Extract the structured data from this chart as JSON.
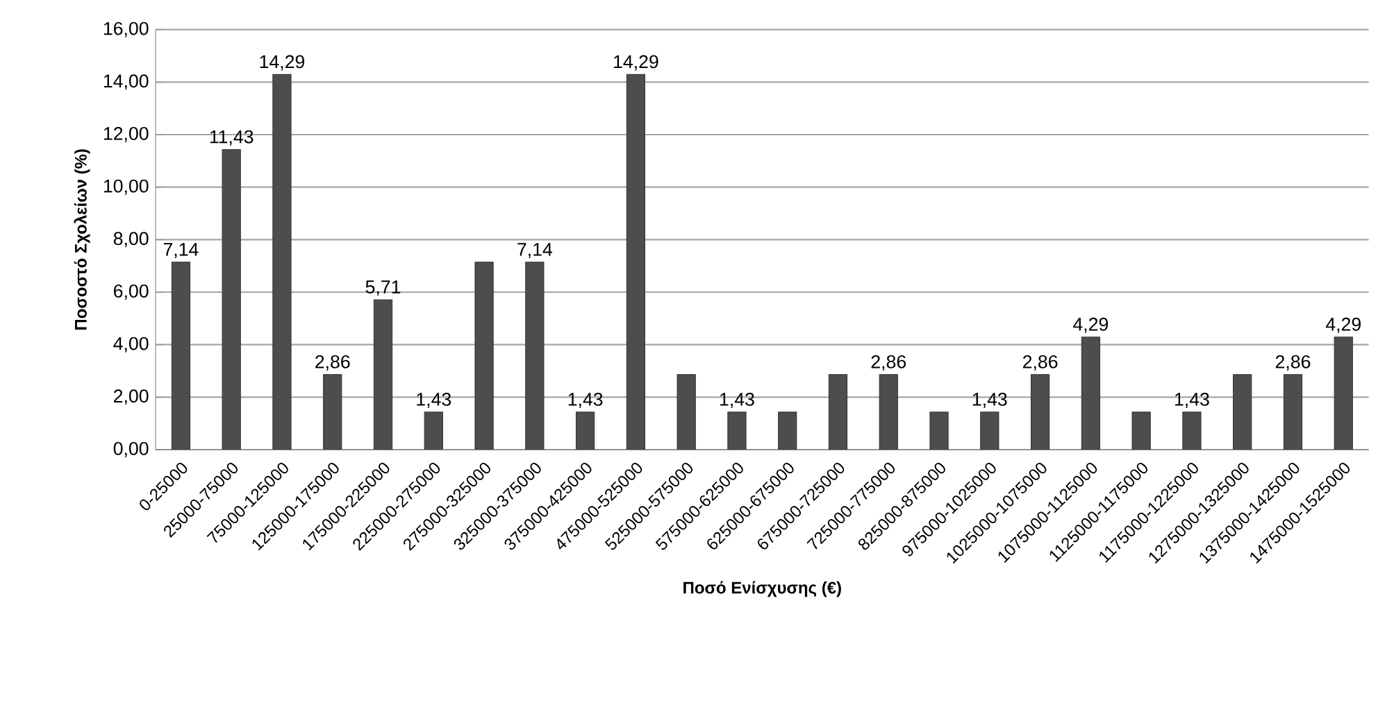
{
  "chart_data": {
    "type": "bar",
    "xlabel": "Ποσό Ενίσχυσης  (€)",
    "ylabel": "Ποσοστό Σχολείων  (%)",
    "categories": [
      "0-25000",
      "25000-75000",
      "75000-125000",
      "125000-175000",
      "175000-225000",
      "225000-275000",
      "275000-325000",
      "325000-375000",
      "375000-425000",
      "475000-525000",
      "525000-575000",
      "575000-625000",
      "625000-675000",
      "675000-725000",
      "725000-775000",
      "825000-875000",
      "975000-1025000",
      "1025000-1075000",
      "1075000-1125000",
      "1125000-1175000",
      "1175000-1225000",
      "1275000-1325000",
      "1375000-1425000",
      "1475000-1525000"
    ],
    "values": [
      7.14,
      11.43,
      14.29,
      2.86,
      5.71,
      1.43,
      7.14,
      7.14,
      1.43,
      14.29,
      2.86,
      1.43,
      1.43,
      2.86,
      2.86,
      1.43,
      1.43,
      2.86,
      4.29,
      1.43,
      1.43,
      2.86,
      2.86,
      4.29
    ],
    "value_labels": [
      "7,14",
      "11,43",
      "14,29",
      "2,86",
      "5,71",
      "1,43",
      null,
      "7,14",
      "1,43",
      "14,29",
      null,
      "1,43",
      null,
      null,
      "2,86",
      null,
      "1,43",
      "2,86",
      "4,29",
      null,
      "1,43",
      null,
      "2,86",
      "4,29"
    ],
    "color": "#4d4d4d",
    "ylim": [
      0,
      16
    ],
    "yticks": [
      {
        "value": 0,
        "label": "0,00"
      },
      {
        "value": 2,
        "label": "2,00"
      },
      {
        "value": 4,
        "label": "4,00"
      },
      {
        "value": 6,
        "label": "6,00"
      },
      {
        "value": 8,
        "label": "8,00"
      },
      {
        "value": 10,
        "label": "10,00"
      },
      {
        "value": 12,
        "label": "12,00"
      },
      {
        "value": 14,
        "label": "14,00"
      },
      {
        "value": 16,
        "label": "16,00"
      }
    ],
    "grid": "y"
  }
}
